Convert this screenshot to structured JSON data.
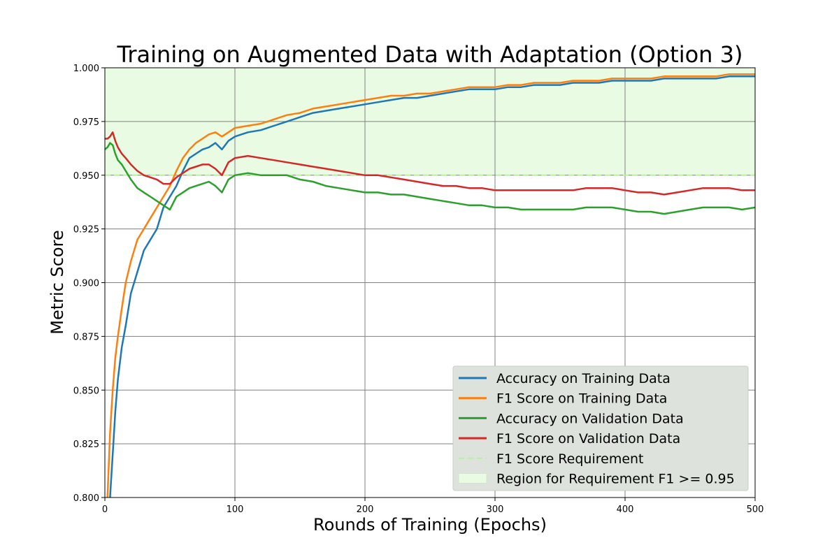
{
  "chart_data": {
    "type": "line",
    "title": "Training on Augmented Data with Adaptation (Option 3)",
    "xlabel": "Rounds of Training (Epochs)",
    "ylabel": "Metric Score",
    "xlim": [
      0,
      500
    ],
    "ylim": [
      0.8,
      1.0
    ],
    "xticks": [
      0,
      100,
      200,
      300,
      400,
      500
    ],
    "xtick_labels": [
      "0",
      "100",
      "200",
      "300",
      "400",
      "500"
    ],
    "yticks": [
      0.8,
      0.825,
      0.85,
      0.875,
      0.9,
      0.925,
      0.95,
      0.975,
      1.0
    ],
    "ytick_labels": [
      "0.800",
      "0.825",
      "0.850",
      "0.875",
      "0.900",
      "0.925",
      "0.950",
      "0.975",
      "1.000"
    ],
    "grid": true,
    "legend_position": "lower-right",
    "requirement": {
      "name": "F1 Score Requirement",
      "y": 0.95,
      "color": "#b8f0a0"
    },
    "region": {
      "name": "Region for Requirement F1 >= 0.95",
      "y_range": [
        0.95,
        1.0
      ],
      "color": "#e9fbe3"
    },
    "series": [
      {
        "name": "Accuracy on Training Data",
        "color": "#1f77b4",
        "x": [
          0,
          2,
          4,
          6,
          8,
          10,
          13,
          16,
          20,
          25,
          30,
          35,
          40,
          45,
          50,
          55,
          60,
          65,
          70,
          75,
          80,
          85,
          90,
          95,
          100,
          110,
          120,
          130,
          140,
          150,
          160,
          170,
          180,
          190,
          200,
          210,
          220,
          230,
          240,
          250,
          260,
          270,
          280,
          290,
          300,
          310,
          320,
          330,
          340,
          350,
          360,
          370,
          380,
          390,
          400,
          410,
          420,
          430,
          440,
          450,
          460,
          470,
          480,
          490,
          500
        ],
        "y": [
          0.79,
          0.79,
          0.8,
          0.82,
          0.84,
          0.855,
          0.87,
          0.88,
          0.895,
          0.905,
          0.915,
          0.92,
          0.925,
          0.935,
          0.94,
          0.945,
          0.952,
          0.958,
          0.96,
          0.962,
          0.963,
          0.965,
          0.962,
          0.966,
          0.968,
          0.97,
          0.971,
          0.973,
          0.975,
          0.977,
          0.979,
          0.98,
          0.981,
          0.982,
          0.983,
          0.984,
          0.985,
          0.986,
          0.986,
          0.987,
          0.988,
          0.989,
          0.99,
          0.99,
          0.99,
          0.991,
          0.991,
          0.992,
          0.992,
          0.992,
          0.993,
          0.993,
          0.993,
          0.994,
          0.994,
          0.994,
          0.994,
          0.995,
          0.995,
          0.995,
          0.995,
          0.995,
          0.996,
          0.996,
          0.996
        ]
      },
      {
        "name": "F1 Score on Training Data",
        "color": "#ff7f0e",
        "x": [
          0,
          2,
          4,
          6,
          8,
          10,
          13,
          16,
          20,
          25,
          30,
          35,
          40,
          45,
          50,
          55,
          60,
          65,
          70,
          75,
          80,
          85,
          90,
          95,
          100,
          110,
          120,
          130,
          140,
          150,
          160,
          170,
          180,
          190,
          200,
          210,
          220,
          230,
          240,
          250,
          260,
          270,
          280,
          290,
          300,
          310,
          320,
          330,
          340,
          350,
          360,
          370,
          380,
          390,
          400,
          410,
          420,
          430,
          440,
          450,
          460,
          470,
          480,
          490,
          500
        ],
        "y": [
          0.79,
          0.8,
          0.83,
          0.85,
          0.865,
          0.875,
          0.888,
          0.9,
          0.91,
          0.92,
          0.925,
          0.93,
          0.935,
          0.94,
          0.945,
          0.952,
          0.958,
          0.962,
          0.965,
          0.967,
          0.969,
          0.97,
          0.968,
          0.97,
          0.972,
          0.973,
          0.974,
          0.976,
          0.978,
          0.979,
          0.981,
          0.982,
          0.983,
          0.984,
          0.985,
          0.986,
          0.987,
          0.987,
          0.988,
          0.988,
          0.989,
          0.99,
          0.991,
          0.991,
          0.991,
          0.992,
          0.992,
          0.993,
          0.993,
          0.993,
          0.994,
          0.994,
          0.994,
          0.995,
          0.995,
          0.995,
          0.995,
          0.996,
          0.996,
          0.996,
          0.996,
          0.996,
          0.997,
          0.997,
          0.997
        ]
      },
      {
        "name": "Accuracy on Validation Data",
        "color": "#2ca02c",
        "x": [
          0,
          2,
          4,
          6,
          8,
          10,
          13,
          16,
          20,
          25,
          30,
          35,
          40,
          45,
          50,
          55,
          60,
          65,
          70,
          75,
          80,
          85,
          90,
          95,
          100,
          110,
          120,
          130,
          140,
          150,
          160,
          170,
          180,
          190,
          200,
          210,
          220,
          230,
          240,
          250,
          260,
          270,
          280,
          290,
          300,
          310,
          320,
          330,
          340,
          350,
          360,
          370,
          380,
          390,
          400,
          410,
          420,
          430,
          440,
          450,
          460,
          470,
          480,
          490,
          500
        ],
        "y": [
          0.962,
          0.963,
          0.965,
          0.964,
          0.96,
          0.957,
          0.955,
          0.952,
          0.948,
          0.944,
          0.942,
          0.94,
          0.938,
          0.936,
          0.934,
          0.94,
          0.942,
          0.944,
          0.945,
          0.946,
          0.947,
          0.945,
          0.942,
          0.948,
          0.95,
          0.951,
          0.95,
          0.95,
          0.95,
          0.948,
          0.947,
          0.945,
          0.944,
          0.943,
          0.942,
          0.942,
          0.941,
          0.941,
          0.94,
          0.939,
          0.938,
          0.937,
          0.936,
          0.936,
          0.935,
          0.935,
          0.934,
          0.934,
          0.934,
          0.934,
          0.934,
          0.935,
          0.935,
          0.935,
          0.934,
          0.933,
          0.933,
          0.932,
          0.933,
          0.934,
          0.935,
          0.935,
          0.935,
          0.934,
          0.935
        ]
      },
      {
        "name": "F1 Score on Validation Data",
        "color": "#d62728",
        "x": [
          0,
          2,
          4,
          6,
          8,
          10,
          13,
          16,
          20,
          25,
          30,
          35,
          40,
          45,
          50,
          55,
          60,
          65,
          70,
          75,
          80,
          85,
          90,
          95,
          100,
          110,
          120,
          130,
          140,
          150,
          160,
          170,
          180,
          190,
          200,
          210,
          220,
          230,
          240,
          250,
          260,
          270,
          280,
          290,
          300,
          310,
          320,
          330,
          340,
          350,
          360,
          370,
          380,
          390,
          400,
          410,
          420,
          430,
          440,
          450,
          460,
          470,
          480,
          490,
          500
        ],
        "y": [
          0.967,
          0.967,
          0.968,
          0.97,
          0.966,
          0.963,
          0.96,
          0.958,
          0.955,
          0.952,
          0.95,
          0.949,
          0.948,
          0.946,
          0.946,
          0.949,
          0.951,
          0.953,
          0.954,
          0.955,
          0.955,
          0.953,
          0.95,
          0.956,
          0.958,
          0.959,
          0.958,
          0.957,
          0.956,
          0.955,
          0.954,
          0.953,
          0.952,
          0.951,
          0.95,
          0.95,
          0.949,
          0.948,
          0.947,
          0.946,
          0.945,
          0.945,
          0.944,
          0.944,
          0.943,
          0.943,
          0.943,
          0.943,
          0.943,
          0.943,
          0.943,
          0.944,
          0.944,
          0.944,
          0.943,
          0.942,
          0.942,
          0.941,
          0.942,
          0.943,
          0.944,
          0.944,
          0.944,
          0.943,
          0.943
        ]
      }
    ]
  }
}
